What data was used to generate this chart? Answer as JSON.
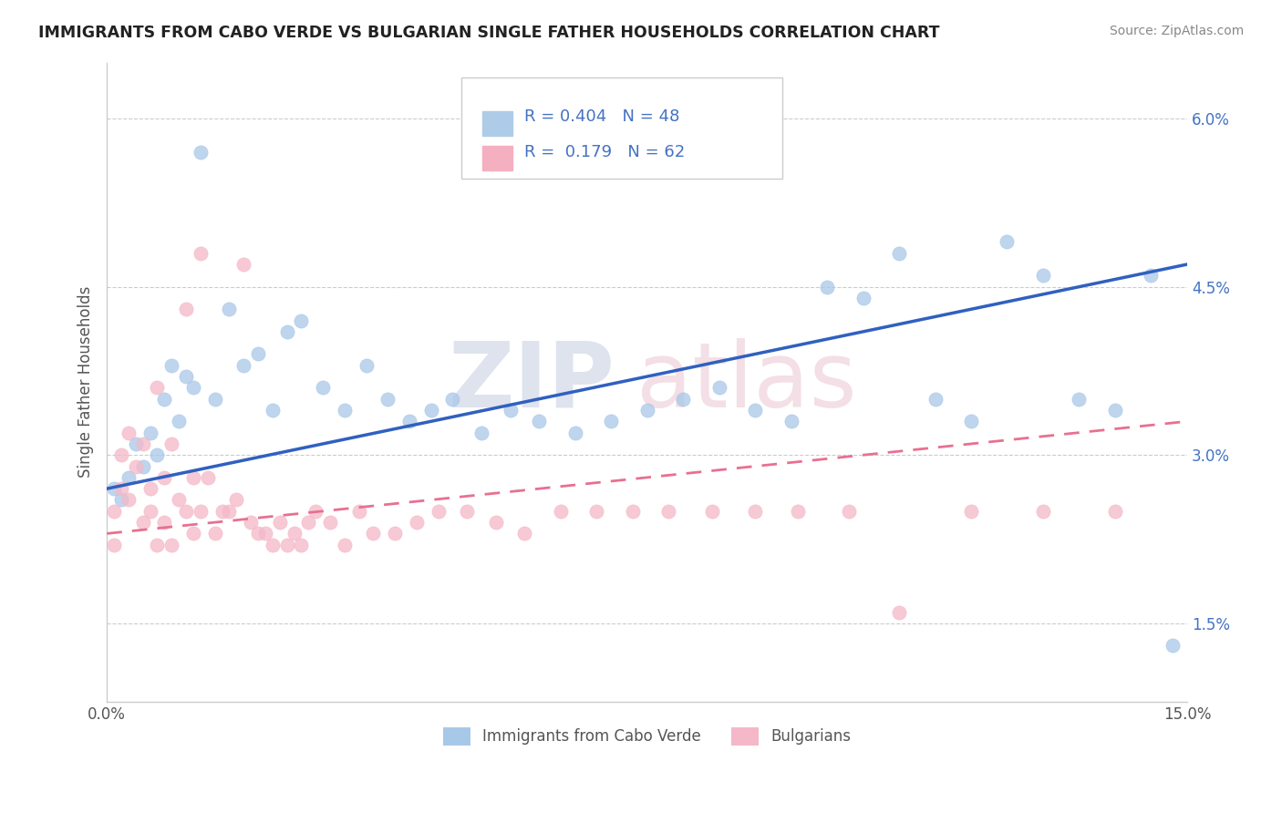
{
  "title": "IMMIGRANTS FROM CABO VERDE VS BULGARIAN SINGLE FATHER HOUSEHOLDS CORRELATION CHART",
  "source": "Source: ZipAtlas.com",
  "ylabel": "Single Father Households",
  "xlim": [
    0.0,
    0.15
  ],
  "ylim": [
    0.008,
    0.065
  ],
  "xtick_positions": [
    0.0,
    0.03,
    0.06,
    0.09,
    0.12,
    0.15
  ],
  "xtick_labels": [
    "0.0%",
    "",
    "",
    "",
    "",
    "15.0%"
  ],
  "ytick_positions": [
    0.015,
    0.03,
    0.045,
    0.06
  ],
  "ytick_labels": [
    "1.5%",
    "3.0%",
    "4.5%",
    "6.0%"
  ],
  "series1_color": "#a8c8e8",
  "series2_color": "#f4b8c8",
  "series1_line_color": "#3060c0",
  "series2_line_color": "#e87090",
  "R1": 0.404,
  "N1": 48,
  "R2": 0.179,
  "N2": 62,
  "legend_label1": "Immigrants from Cabo Verde",
  "legend_label2": "Bulgarians",
  "watermark_zip": "ZIP",
  "watermark_atlas": "atlas",
  "background_color": "#ffffff",
  "grid_color": "#cccccc",
  "s1_x": [
    0.001,
    0.002,
    0.003,
    0.004,
    0.005,
    0.006,
    0.007,
    0.008,
    0.009,
    0.01,
    0.011,
    0.012,
    0.013,
    0.015,
    0.017,
    0.019,
    0.021,
    0.023,
    0.025,
    0.027,
    0.03,
    0.033,
    0.036,
    0.039,
    0.042,
    0.045,
    0.048,
    0.052,
    0.056,
    0.06,
    0.065,
    0.07,
    0.075,
    0.08,
    0.085,
    0.09,
    0.095,
    0.1,
    0.105,
    0.11,
    0.115,
    0.12,
    0.125,
    0.13,
    0.135,
    0.14,
    0.145,
    0.148
  ],
  "s1_y": [
    0.027,
    0.026,
    0.028,
    0.031,
    0.029,
    0.032,
    0.03,
    0.035,
    0.038,
    0.033,
    0.037,
    0.036,
    0.057,
    0.035,
    0.043,
    0.038,
    0.039,
    0.034,
    0.041,
    0.042,
    0.036,
    0.034,
    0.038,
    0.035,
    0.033,
    0.034,
    0.035,
    0.032,
    0.034,
    0.033,
    0.032,
    0.033,
    0.034,
    0.035,
    0.036,
    0.034,
    0.033,
    0.045,
    0.044,
    0.048,
    0.035,
    0.033,
    0.049,
    0.046,
    0.035,
    0.034,
    0.046,
    0.013
  ],
  "s2_x": [
    0.001,
    0.001,
    0.002,
    0.002,
    0.003,
    0.003,
    0.004,
    0.005,
    0.005,
    0.006,
    0.006,
    0.007,
    0.007,
    0.008,
    0.008,
    0.009,
    0.009,
    0.01,
    0.011,
    0.011,
    0.012,
    0.012,
    0.013,
    0.013,
    0.014,
    0.015,
    0.016,
    0.017,
    0.018,
    0.019,
    0.02,
    0.021,
    0.022,
    0.023,
    0.024,
    0.025,
    0.026,
    0.027,
    0.028,
    0.029,
    0.031,
    0.033,
    0.035,
    0.037,
    0.04,
    0.043,
    0.046,
    0.05,
    0.054,
    0.058,
    0.063,
    0.068,
    0.073,
    0.078,
    0.084,
    0.09,
    0.096,
    0.103,
    0.11,
    0.12,
    0.13,
    0.14
  ],
  "s2_y": [
    0.025,
    0.022,
    0.03,
    0.027,
    0.032,
    0.026,
    0.029,
    0.024,
    0.031,
    0.027,
    0.025,
    0.022,
    0.036,
    0.028,
    0.024,
    0.031,
    0.022,
    0.026,
    0.025,
    0.043,
    0.028,
    0.023,
    0.025,
    0.048,
    0.028,
    0.023,
    0.025,
    0.025,
    0.026,
    0.047,
    0.024,
    0.023,
    0.023,
    0.022,
    0.024,
    0.022,
    0.023,
    0.022,
    0.024,
    0.025,
    0.024,
    0.022,
    0.025,
    0.023,
    0.023,
    0.024,
    0.025,
    0.025,
    0.024,
    0.023,
    0.025,
    0.025,
    0.025,
    0.025,
    0.025,
    0.025,
    0.025,
    0.025,
    0.016,
    0.025,
    0.025,
    0.025
  ]
}
